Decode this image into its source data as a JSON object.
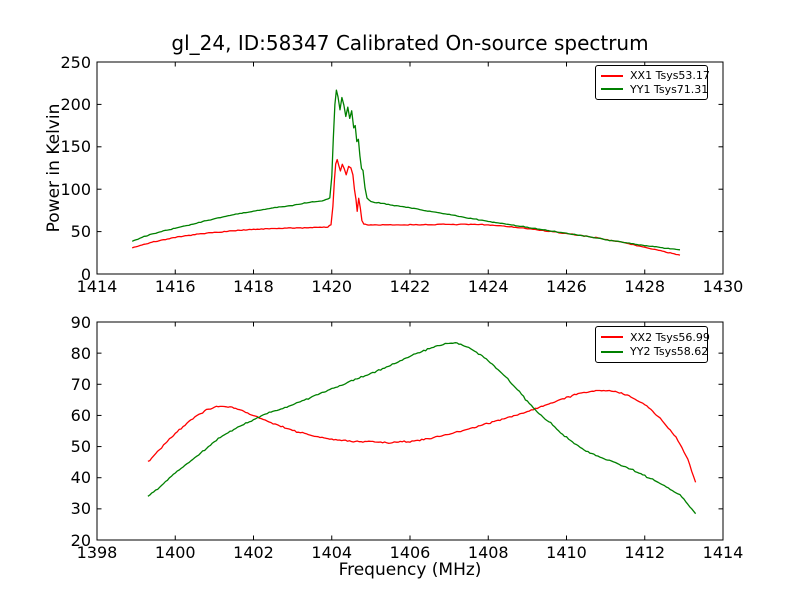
{
  "chart_data": [
    {
      "type": "line",
      "title": "gl_24, ID:58347 Calibrated On-source spectrum",
      "xlabel": "",
      "ylabel": "Power in Kelvin",
      "xlim": [
        1414,
        1430
      ],
      "ylim": [
        0,
        250
      ],
      "xticks": [
        1414,
        1416,
        1418,
        1420,
        1422,
        1424,
        1426,
        1428,
        1430
      ],
      "yticks": [
        0,
        50,
        100,
        150,
        200,
        250
      ],
      "grid": false,
      "legend_position": "upper right",
      "series": [
        {
          "name": "XX1 Tsys53.17",
          "color": "#ff0000",
          "noise": 0.7,
          "points": [
            [
              1414.9,
              31
            ],
            [
              1415.2,
              35
            ],
            [
              1415.6,
              39.5
            ],
            [
              1416,
              43
            ],
            [
              1416.5,
              46.5
            ],
            [
              1417,
              49
            ],
            [
              1417.5,
              51
            ],
            [
              1418,
              52.5
            ],
            [
              1418.5,
              53.5
            ],
            [
              1419,
              54.2
            ],
            [
              1419.5,
              54.8
            ],
            [
              1419.9,
              55.5
            ],
            [
              1419.98,
              58
            ],
            [
              1420.03,
              80
            ],
            [
              1420.07,
              112
            ],
            [
              1420.1,
              130
            ],
            [
              1420.14,
              135
            ],
            [
              1420.18,
              128
            ],
            [
              1420.22,
              121
            ],
            [
              1420.27,
              129
            ],
            [
              1420.32,
              124
            ],
            [
              1420.37,
              117
            ],
            [
              1420.43,
              127
            ],
            [
              1420.49,
              125
            ],
            [
              1420.54,
              117
            ],
            [
              1420.58,
              100
            ],
            [
              1420.62,
              88
            ],
            [
              1420.65,
              74
            ],
            [
              1420.69,
              89
            ],
            [
              1420.73,
              78
            ],
            [
              1420.77,
              63
            ],
            [
              1420.82,
              59
            ],
            [
              1420.9,
              58
            ],
            [
              1421.5,
              57.8
            ],
            [
              1422,
              58
            ],
            [
              1423,
              58.5
            ],
            [
              1423.8,
              58.3
            ],
            [
              1424.3,
              57
            ],
            [
              1425,
              53.5
            ],
            [
              1425.6,
              50
            ],
            [
              1426.2,
              46.5
            ],
            [
              1426.8,
              42.5
            ],
            [
              1427.4,
              37.5
            ],
            [
              1428,
              31.5
            ],
            [
              1428.5,
              26.5
            ],
            [
              1428.9,
              22
            ]
          ]
        },
        {
          "name": "YY1 Tsys71.31",
          "color": "#008000",
          "noise": 0.7,
          "points": [
            [
              1414.9,
              38.5
            ],
            [
              1415.2,
              44
            ],
            [
              1415.6,
              49.5
            ],
            [
              1416,
              54
            ],
            [
              1416.5,
              59.5
            ],
            [
              1417,
              65
            ],
            [
              1417.5,
              70
            ],
            [
              1418,
              74
            ],
            [
              1418.5,
              78
            ],
            [
              1419,
              81
            ],
            [
              1419.4,
              84.5
            ],
            [
              1419.8,
              86.5
            ],
            [
              1419.95,
              90
            ],
            [
              1420.0,
              115
            ],
            [
              1420.04,
              160
            ],
            [
              1420.08,
              200
            ],
            [
              1420.12,
              217
            ],
            [
              1420.16,
              209
            ],
            [
              1420.21,
              194
            ],
            [
              1420.26,
              208
            ],
            [
              1420.31,
              199
            ],
            [
              1420.36,
              186
            ],
            [
              1420.41,
              197
            ],
            [
              1420.46,
              184
            ],
            [
              1420.51,
              192
            ],
            [
              1420.56,
              172
            ],
            [
              1420.6,
              175
            ],
            [
              1420.64,
              156
            ],
            [
              1420.68,
              159
            ],
            [
              1420.72,
              139
            ],
            [
              1420.76,
              125
            ],
            [
              1420.8,
              122
            ],
            [
              1420.85,
              101
            ],
            [
              1420.9,
              90
            ],
            [
              1421,
              85.5
            ],
            [
              1421.5,
              81.5
            ],
            [
              1422,
              78
            ],
            [
              1422.5,
              74
            ],
            [
              1423,
              70
            ],
            [
              1423.5,
              66
            ],
            [
              1424,
              62
            ],
            [
              1424.5,
              58.5
            ],
            [
              1425,
              55
            ],
            [
              1425.5,
              51.5
            ],
            [
              1426,
              48
            ],
            [
              1426.5,
              44.5
            ],
            [
              1427,
              40.5
            ],
            [
              1427.5,
              37
            ],
            [
              1428,
              33.5
            ],
            [
              1428.5,
              30.5
            ],
            [
              1428.9,
              28.5
            ]
          ]
        }
      ]
    },
    {
      "type": "line",
      "title": "",
      "xlabel": "Frequency (MHz)",
      "ylabel": "",
      "xlim": [
        1398,
        1414
      ],
      "ylim": [
        20,
        90
      ],
      "xticks": [
        1398,
        1400,
        1402,
        1404,
        1406,
        1408,
        1410,
        1412,
        1414
      ],
      "yticks": [
        20,
        30,
        40,
        50,
        60,
        70,
        80,
        90
      ],
      "grid": false,
      "legend_position": "upper right",
      "series": [
        {
          "name": "XX2 Tsys56.99",
          "color": "#ff0000",
          "noise": 0.35,
          "points": [
            [
              1399.3,
              45
            ],
            [
              1399.6,
              49
            ],
            [
              1399.9,
              53
            ],
            [
              1400.2,
              56.5
            ],
            [
              1400.5,
              59.5
            ],
            [
              1400.8,
              61.8
            ],
            [
              1401.1,
              63
            ],
            [
              1401.4,
              62.8
            ],
            [
              1401.7,
              61.5
            ],
            [
              1402,
              60
            ],
            [
              1402.4,
              58
            ],
            [
              1402.8,
              56
            ],
            [
              1403.2,
              54.5
            ],
            [
              1403.6,
              53.2
            ],
            [
              1404,
              52.3
            ],
            [
              1404.5,
              51.8
            ],
            [
              1405,
              51.5
            ],
            [
              1405.5,
              51.3
            ],
            [
              1406,
              51.6
            ],
            [
              1406.5,
              52.6
            ],
            [
              1407,
              54
            ],
            [
              1407.5,
              55.7
            ],
            [
              1408,
              57.5
            ],
            [
              1408.5,
              59.3
            ],
            [
              1409,
              61.3
            ],
            [
              1409.5,
              63.5
            ],
            [
              1410,
              65.8
            ],
            [
              1410.4,
              67.3
            ],
            [
              1410.8,
              68
            ],
            [
              1411.2,
              67.8
            ],
            [
              1411.6,
              66.3
            ],
            [
              1412,
              63.5
            ],
            [
              1412.4,
              59
            ],
            [
              1412.8,
              53
            ],
            [
              1413.1,
              46
            ],
            [
              1413.3,
              38.5
            ]
          ]
        },
        {
          "name": "YY2 Tsys58.62",
          "color": "#008000",
          "noise": 0.35,
          "points": [
            [
              1399.3,
              34
            ],
            [
              1399.6,
              37
            ],
            [
              1399.9,
              40.5
            ],
            [
              1400.3,
              44.5
            ],
            [
              1400.7,
              48.5
            ],
            [
              1401.1,
              52.5
            ],
            [
              1401.5,
              55.5
            ],
            [
              1401.9,
              58
            ],
            [
              1402.3,
              60.5
            ],
            [
              1402.7,
              62
            ],
            [
              1403.1,
              64
            ],
            [
              1403.5,
              66
            ],
            [
              1403.9,
              68
            ],
            [
              1404.3,
              70
            ],
            [
              1404.7,
              72
            ],
            [
              1405.1,
              74
            ],
            [
              1405.5,
              76
            ],
            [
              1405.9,
              78.5
            ],
            [
              1406.3,
              80.5
            ],
            [
              1406.6,
              82
            ],
            [
              1406.9,
              83
            ],
            [
              1407.2,
              83.3
            ],
            [
              1407.5,
              81.8
            ],
            [
              1407.8,
              79.5
            ],
            [
              1408.1,
              76.5
            ],
            [
              1408.4,
              73
            ],
            [
              1408.7,
              69
            ],
            [
              1409,
              64.5
            ],
            [
              1409.3,
              60.5
            ],
            [
              1409.6,
              57.5
            ],
            [
              1409.9,
              54
            ],
            [
              1410.2,
              51
            ],
            [
              1410.5,
              48.5
            ],
            [
              1410.9,
              46.5
            ],
            [
              1411.3,
              44.5
            ],
            [
              1411.7,
              42.5
            ],
            [
              1412.1,
              40
            ],
            [
              1412.5,
              37.5
            ],
            [
              1412.9,
              34.5
            ],
            [
              1413.3,
              28.5
            ]
          ]
        }
      ]
    }
  ]
}
